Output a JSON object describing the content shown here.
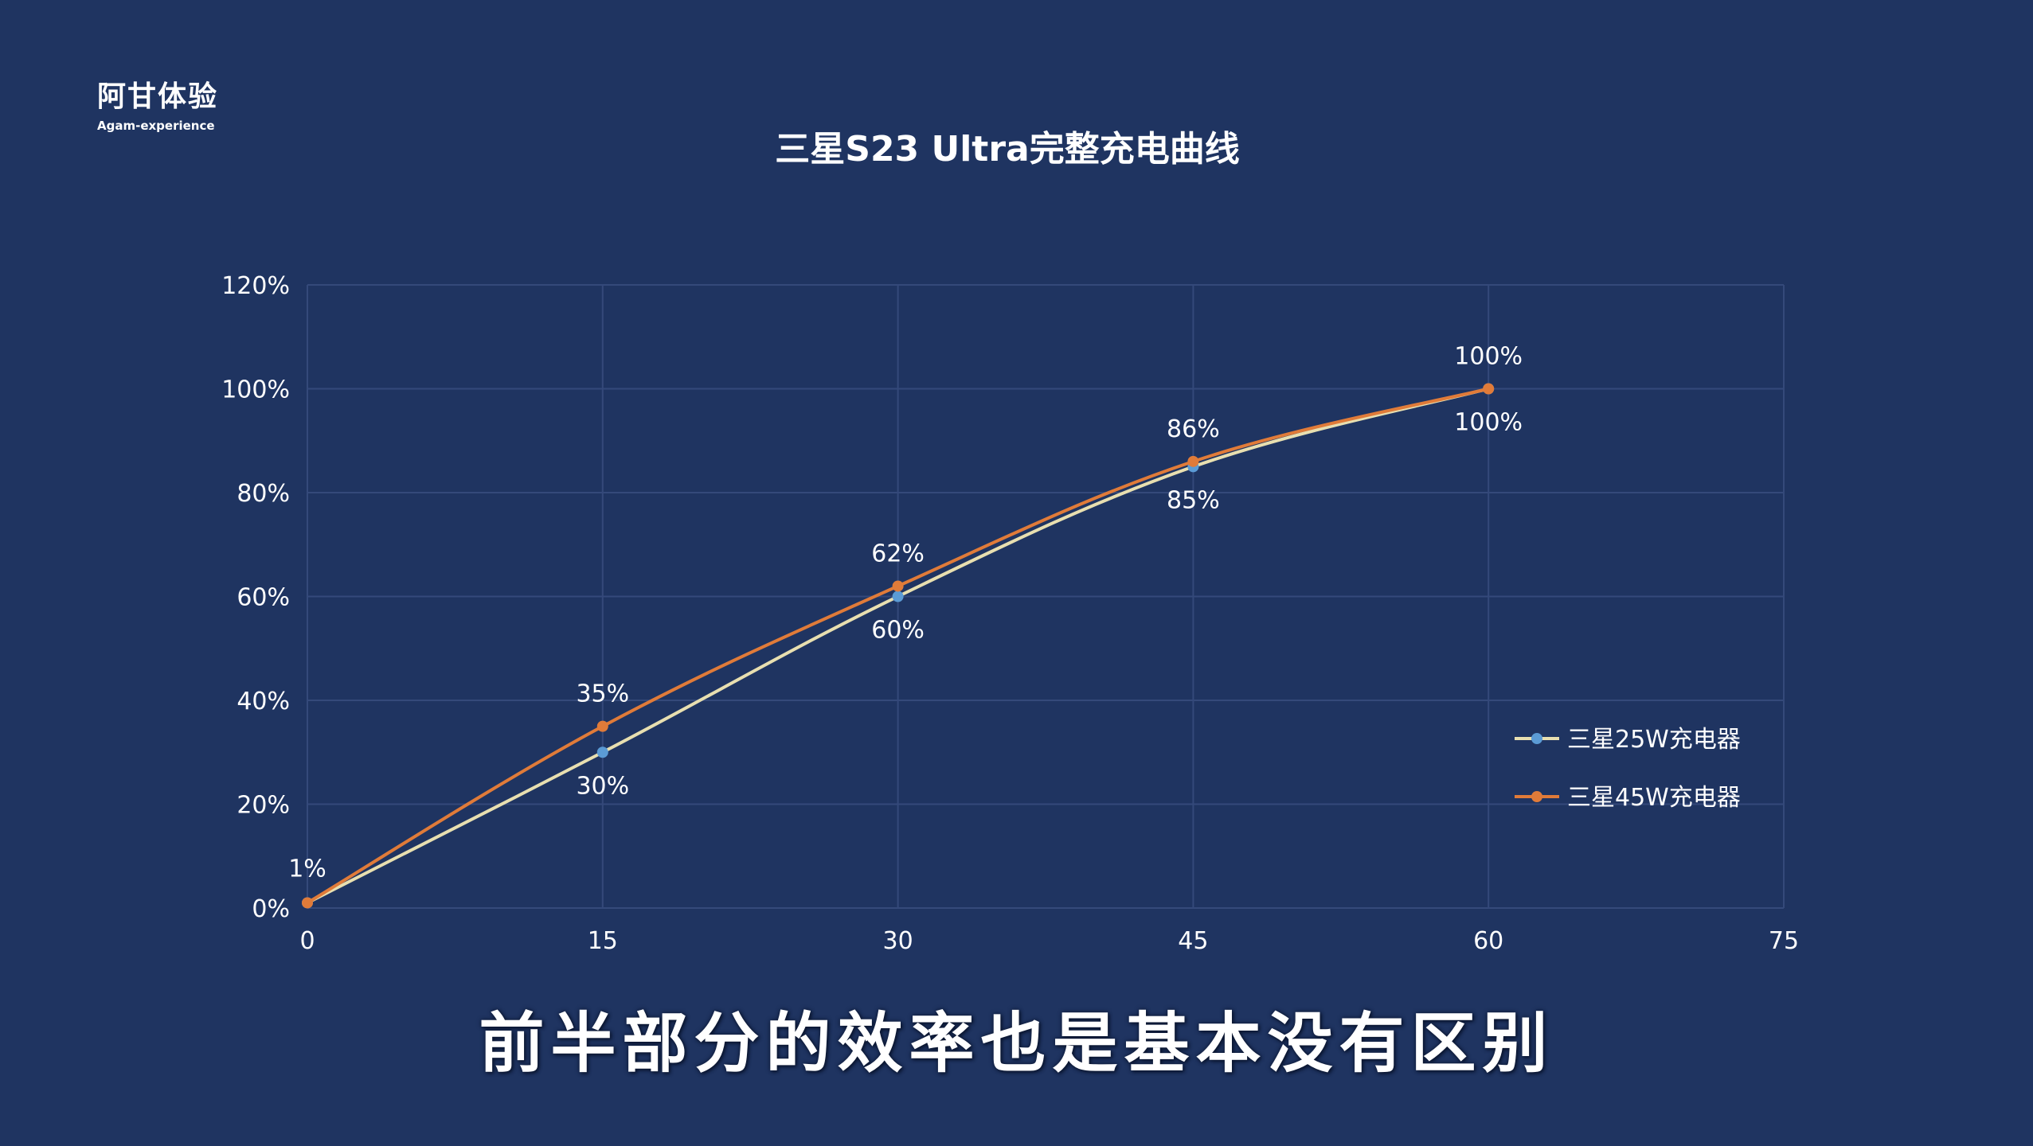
{
  "watermark": {
    "name": "阿甘体验",
    "subtitle": "Agam-experience"
  },
  "caption": "前半部分的效率也是基本没有区别",
  "colors": {
    "background": "#1f3461",
    "grid": "#34497a",
    "series_25w_line": "#e8dfb0",
    "series_25w_marker": "#5b9bd5",
    "series_45w": "#e07b39",
    "text": "#ffffff"
  },
  "chart_data": {
    "type": "line",
    "title": "三星S23 Ultra完整充电曲线",
    "xlabel": "",
    "ylabel": "",
    "x": [
      0,
      15,
      30,
      45,
      60
    ],
    "xlim": [
      0,
      75
    ],
    "xticks": [
      0,
      15,
      30,
      45,
      60,
      75
    ],
    "ylim": [
      0,
      120
    ],
    "yticks": [
      "0%",
      "20%",
      "40%",
      "60%",
      "80%",
      "100%",
      "120%"
    ],
    "grid": true,
    "smooth": true,
    "legend_position": "right",
    "series": [
      {
        "name": "三星25W充电器",
        "values": [
          1,
          30,
          60,
          85,
          100
        ],
        "labels": [
          "",
          "30%",
          "60%",
          "85%",
          "100%"
        ],
        "label_position": "below"
      },
      {
        "name": "三星45W充电器",
        "values": [
          1,
          35,
          62,
          86,
          100
        ],
        "labels": [
          "1%",
          "35%",
          "62%",
          "86%",
          "100%"
        ],
        "label_position": "above"
      }
    ]
  }
}
